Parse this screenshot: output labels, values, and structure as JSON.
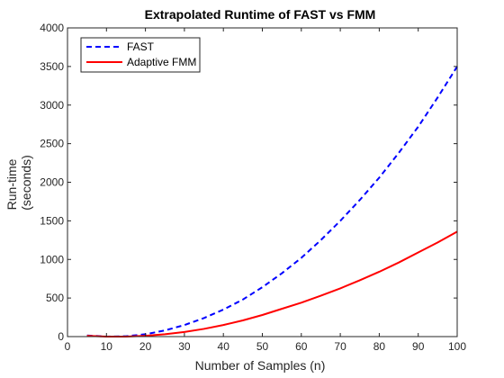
{
  "chart_data": {
    "type": "line",
    "title": "Extrapolated Runtime of FAST vs FMM",
    "xlabel": "Number of Samples (n)",
    "ylabel": [
      "Run-time",
      "(seconds)"
    ],
    "xlim": [
      0,
      100
    ],
    "ylim": [
      0,
      4000
    ],
    "xticks": [
      0,
      10,
      20,
      30,
      40,
      50,
      60,
      70,
      80,
      90,
      100
    ],
    "yticks": [
      0,
      500,
      1000,
      1500,
      2000,
      2500,
      3000,
      3500,
      4000
    ],
    "grid": false,
    "legend_position": "top-left",
    "x": [
      5,
      10,
      15,
      20,
      25,
      30,
      35,
      40,
      45,
      50,
      55,
      60,
      65,
      70,
      75,
      80,
      85,
      90,
      95,
      100
    ],
    "series": [
      {
        "name": "FAST",
        "color": "#0000ff",
        "line_style": "dashed",
        "values": [
          15,
          0,
          5,
          30,
          80,
          150,
          240,
          350,
          480,
          640,
          820,
          1020,
          1250,
          1500,
          1770,
          2060,
          2380,
          2720,
          3100,
          3500
        ]
      },
      {
        "name": "Adaptive FMM",
        "color": "#ff0000",
        "line_style": "solid",
        "values": [
          10,
          0,
          0,
          10,
          30,
          60,
          100,
          150,
          210,
          280,
          360,
          440,
          530,
          625,
          730,
          840,
          960,
          1090,
          1220,
          1360
        ]
      }
    ]
  }
}
